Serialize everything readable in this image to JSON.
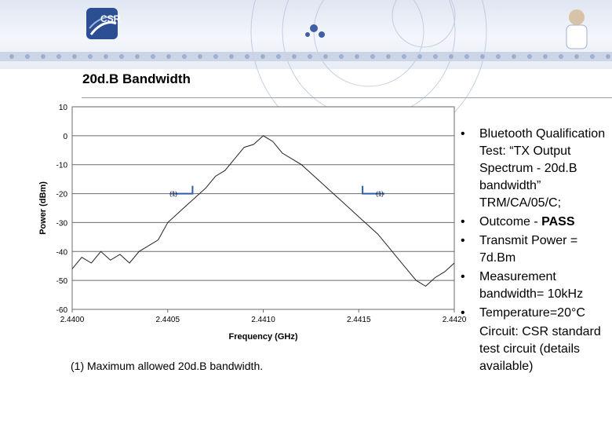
{
  "slide": {
    "title": "20d.B Bandwidth"
  },
  "branding": {
    "logo_text": "CSR"
  },
  "footnote": "(1) Maximum allowed 20d.B bandwidth.",
  "bullets": [
    {
      "marker": "•",
      "text": "Bluetooth Qualification Test: “TX Output Spectrum - 20d.B bandwidth” TRM/CA/05/C;"
    },
    {
      "marker": "•",
      "text": "Outcome - ",
      "bold": "PASS"
    },
    {
      "marker": "•",
      "text": "Transmit Power = 7d.Bm"
    },
    {
      "marker": "•",
      "text": "Measurement bandwidth= 10kHz"
    },
    {
      "marker": "•",
      "text": "Temperature=20°C"
    },
    {
      "marker": "",
      "text": "Circuit: CSR standard test circuit (details available)"
    }
  ],
  "colors": {
    "line": "#222222",
    "grid": "#6b6b6b",
    "plot_bg": "#ffffff",
    "marker": "#2f5ea8"
  },
  "chart_data": {
    "type": "line",
    "xlabel": "Frequency (GHz)",
    "ylabel": "Power (dBm)",
    "xlim": [
      2.44,
      2.442
    ],
    "ylim": [
      -60,
      10
    ],
    "x_ticks": [
      "2.4400",
      "2.4405",
      "2.4410",
      "2.4415",
      "2.4420"
    ],
    "y_ticks": [
      "10",
      "0",
      "-10",
      "-20",
      "-30",
      "-40",
      "-50",
      "-60"
    ],
    "grid": "horizontal",
    "series": [
      {
        "x": [
          2.44,
          2.44005,
          2.4401,
          2.44015,
          2.4402,
          2.44025,
          2.4403,
          2.44035,
          2.4404,
          2.44045,
          2.4405,
          2.44055,
          2.4406,
          2.44065,
          2.4407,
          2.44075,
          2.4408,
          2.44085,
          2.4409,
          2.44095,
          2.441,
          2.44105,
          2.4411,
          2.44115,
          2.4412,
          2.44125,
          2.4413,
          2.44135,
          2.4414,
          2.44145,
          2.4415,
          2.44155,
          2.4416,
          2.44165,
          2.4417,
          2.44175,
          2.4418,
          2.44185,
          2.4419,
          2.44195,
          2.442
        ],
        "values": [
          -46,
          -42,
          -44,
          -40,
          -43,
          -41,
          -44,
          -40,
          -38,
          -36,
          -30,
          -27,
          -24,
          -21,
          -18,
          -14,
          -12,
          -8,
          -4,
          -3,
          0,
          -2,
          -6,
          -8,
          -10,
          -13,
          -16,
          -19,
          -22,
          -25,
          -28,
          -31,
          -34,
          -38,
          -42,
          -46,
          -50,
          -52,
          -49,
          -47,
          -44
        ]
      }
    ],
    "annotations": [
      {
        "text": "(1)",
        "x": 2.44053,
        "y": -20
      },
      {
        "text": "(1)",
        "x": 2.44161,
        "y": -20
      }
    ],
    "markers": [
      {
        "x": 2.44063,
        "y": -20,
        "direction": "left"
      },
      {
        "x": 2.44152,
        "y": -20,
        "direction": "right"
      }
    ]
  }
}
